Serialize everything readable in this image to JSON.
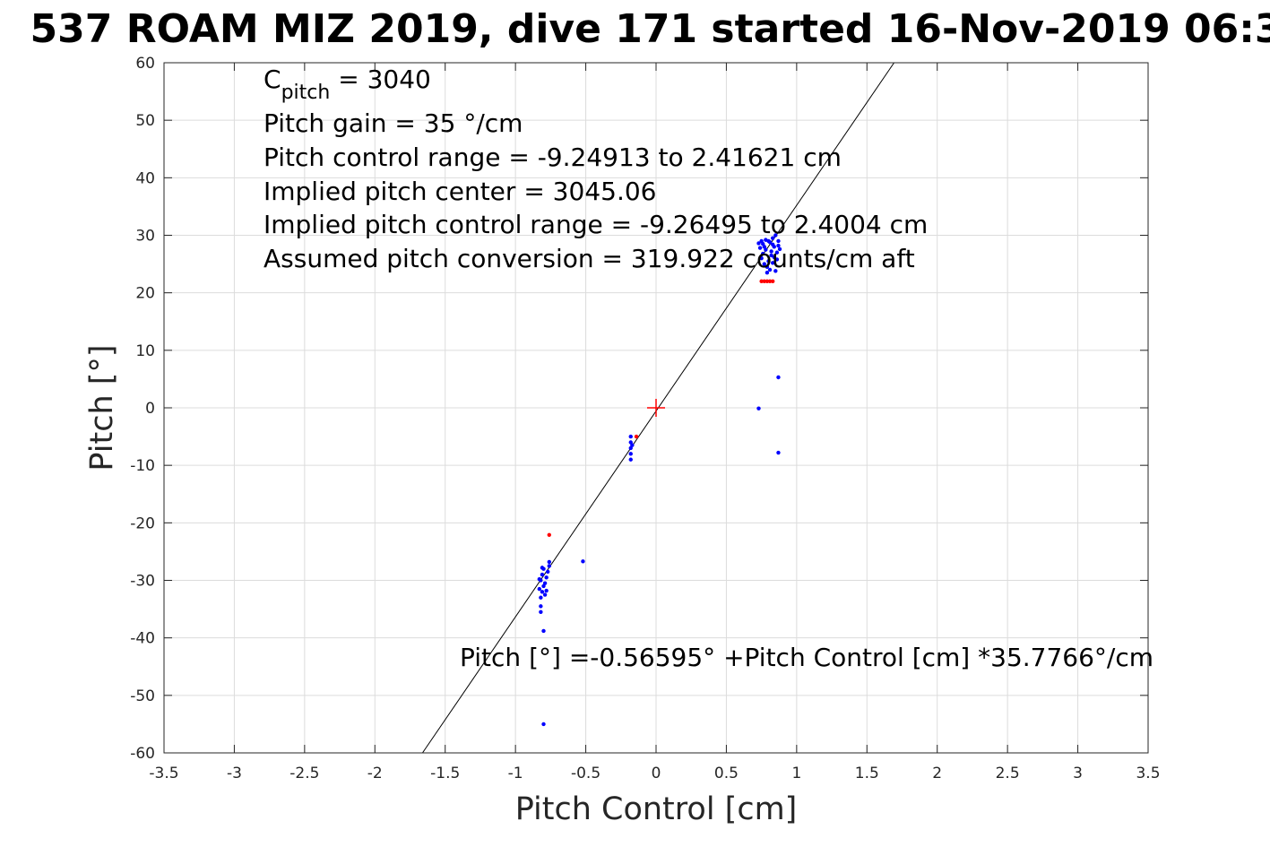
{
  "chart_data": {
    "type": "scatter",
    "title": "537 ROAM MIZ 2019, dive 171 started 16-Nov-2019 06:3",
    "xlabel": "Pitch Control [cm]",
    "ylabel": "Pitch [°]",
    "xlim": [
      -3.5,
      3.5
    ],
    "ylim": [
      -60,
      60
    ],
    "grid": true,
    "x_ticks": [
      "-3.5",
      "-3",
      "-2.5",
      "-2",
      "-1.5",
      "-1",
      "-0.5",
      "0",
      "0.5",
      "1",
      "1.5",
      "2",
      "2.5",
      "3",
      "3.5"
    ],
    "y_ticks": [
      "60",
      "50",
      "40",
      "30",
      "20",
      "10",
      "0",
      "-10",
      "-20",
      "-30",
      "-40",
      "-50",
      "-60"
    ],
    "annotations": {
      "c_pitch_main": "C",
      "c_pitch_sub": "pitch",
      "c_pitch_value": " = 3040",
      "lines": [
        "Pitch gain = 35 °/cm",
        "Pitch control range = -9.24913 to 2.41621 cm",
        "Implied pitch center = 3045.06",
        "Implied pitch control range = -9.26495 to 2.4004 cm",
        "Assumed pitch conversion = 319.922 counts/cm aft"
      ],
      "equation": "Pitch [°] =-0.56595° +Pitch Control [cm] *35.7766°/cm"
    },
    "fit_line": {
      "intercept": -0.56595,
      "slope": 35.7766,
      "color": "#000000"
    },
    "center_marker": {
      "x": 0,
      "y": 0,
      "color": "#ff0000"
    },
    "series": [
      {
        "color": "#0000ff",
        "points": [
          [
            0.76,
            28.5
          ],
          [
            0.78,
            27.5
          ],
          [
            0.8,
            29.0
          ],
          [
            0.82,
            26.5
          ],
          [
            0.84,
            28.0
          ],
          [
            0.86,
            27.0
          ],
          [
            0.75,
            26.0
          ],
          [
            0.77,
            25.0
          ],
          [
            0.79,
            24.5
          ],
          [
            0.81,
            28.8
          ],
          [
            0.83,
            29.5
          ],
          [
            0.85,
            30.0
          ],
          [
            0.87,
            28.2
          ],
          [
            0.74,
            27.8
          ],
          [
            0.76,
            26.8
          ],
          [
            0.78,
            29.2
          ],
          [
            0.8,
            25.5
          ],
          [
            0.82,
            27.2
          ],
          [
            0.84,
            26.2
          ],
          [
            0.86,
            25.8
          ],
          [
            0.88,
            27.6
          ],
          [
            0.73,
            28.6
          ],
          [
            0.79,
            23.5
          ],
          [
            0.81,
            24.0
          ],
          [
            0.83,
            25.2
          ],
          [
            0.85,
            23.8
          ],
          [
            0.87,
            29.0
          ],
          [
            0.77,
            28.0
          ],
          [
            0.75,
            29.0
          ],
          [
            0.83,
            28.4
          ],
          [
            0.87,
            5.3
          ],
          [
            0.73,
            -0.1
          ],
          [
            0.87,
            -7.8
          ],
          [
            -0.18,
            -5.0
          ],
          [
            -0.18,
            -6.0
          ],
          [
            -0.18,
            -7.0
          ],
          [
            -0.18,
            -8.0
          ],
          [
            -0.18,
            -9.0
          ],
          [
            -0.17,
            -6.5
          ],
          [
            -0.52,
            -26.7
          ],
          [
            -0.8,
            -28.0
          ],
          [
            -0.81,
            -29.0
          ],
          [
            -0.82,
            -30.0
          ],
          [
            -0.8,
            -31.0
          ],
          [
            -0.81,
            -32.0
          ],
          [
            -0.82,
            -33.0
          ],
          [
            -0.79,
            -30.5
          ],
          [
            -0.78,
            -29.5
          ],
          [
            -0.77,
            -28.5
          ],
          [
            -0.76,
            -27.5
          ],
          [
            -0.76,
            -26.8
          ],
          [
            -0.83,
            -31.5
          ],
          [
            -0.82,
            -34.5
          ],
          [
            -0.82,
            -35.5
          ],
          [
            -0.8,
            -38.8
          ],
          [
            -0.8,
            -55.0
          ],
          [
            -0.79,
            -32.5
          ],
          [
            -0.78,
            -31.8
          ],
          [
            -0.83,
            -29.8
          ],
          [
            -0.81,
            -27.8
          ]
        ]
      },
      {
        "color": "#ff0000",
        "points": [
          [
            0.75,
            22.0
          ],
          [
            0.77,
            22.0
          ],
          [
            0.79,
            22.0
          ],
          [
            0.81,
            22.0
          ],
          [
            0.83,
            22.0
          ],
          [
            -0.76,
            -22.1
          ],
          [
            -0.14,
            -5.0
          ]
        ]
      }
    ]
  }
}
